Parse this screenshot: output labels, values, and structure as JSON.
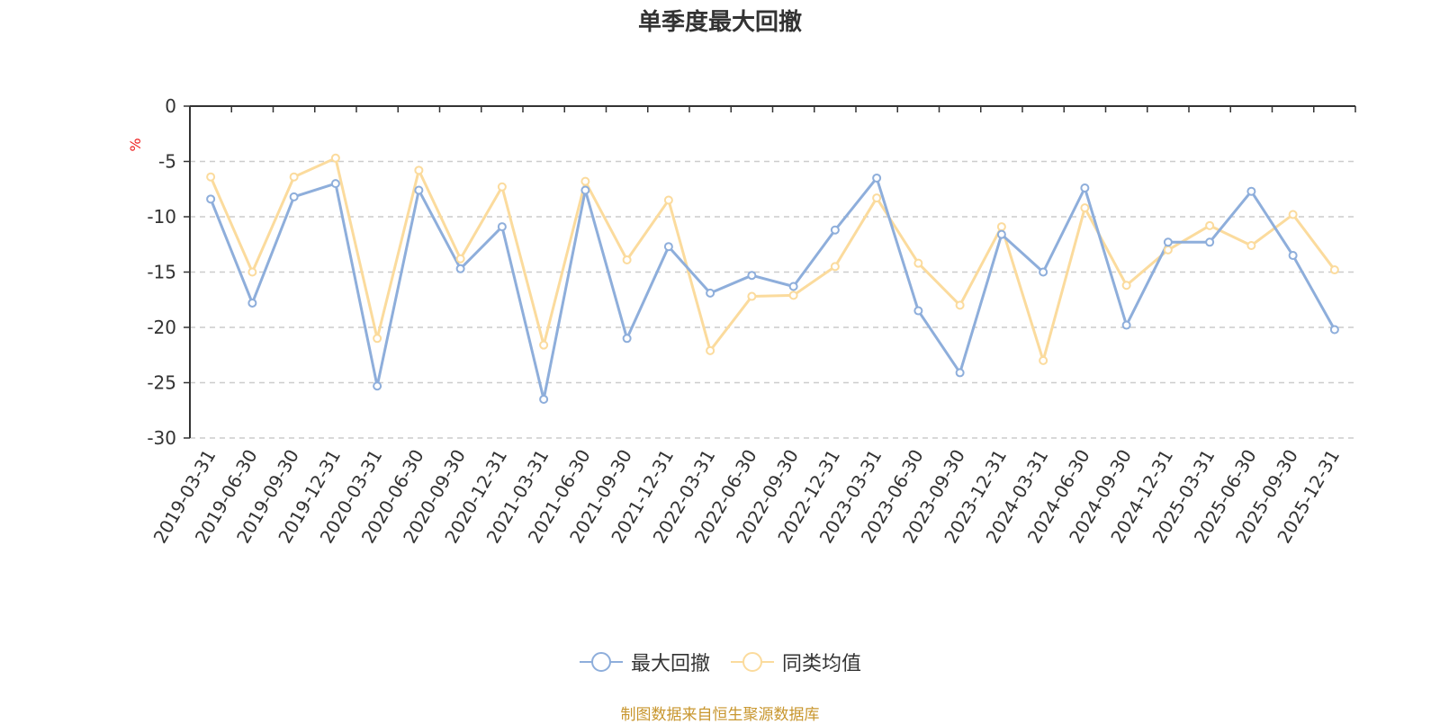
{
  "chart_data": {
    "type": "line",
    "title": "单季度最大回撤",
    "ylabel": "%",
    "xlabel": "",
    "ylim": [
      -30,
      0
    ],
    "yticks": [
      0,
      -5,
      -10,
      -15,
      -20,
      -25,
      -30
    ],
    "grid": "horizontal-dashed",
    "legend_position": "bottom-center",
    "categories": [
      "2019-03-31",
      "2019-06-30",
      "2019-09-30",
      "2019-12-31",
      "2020-03-31",
      "2020-06-30",
      "2020-09-30",
      "2020-12-31",
      "2021-03-31",
      "2021-06-30",
      "2021-09-30",
      "2021-12-31",
      "2022-03-31",
      "2022-06-30",
      "2022-09-30",
      "2022-12-31",
      "2023-03-31",
      "2023-06-30",
      "2023-09-30",
      "2023-12-31",
      "2024-03-31",
      "2024-06-30",
      "2024-09-30",
      "2024-12-31",
      "2025-03-31",
      "2025-06-30",
      "2025-09-30",
      "2025-12-31"
    ],
    "series": [
      {
        "name": "最大回撤",
        "color": "#8eaedb",
        "values": [
          -8.4,
          -17.8,
          -8.2,
          -7.0,
          -25.3,
          -7.6,
          -14.7,
          -10.9,
          -26.5,
          -7.6,
          -21.0,
          -12.7,
          -16.9,
          -15.3,
          -16.3,
          -11.2,
          -6.5,
          -18.5,
          -24.1,
          -11.6,
          -15.0,
          -7.4,
          -19.8,
          -12.3,
          -12.3,
          -7.7,
          -13.5,
          -20.2
        ]
      },
      {
        "name": "同类均值",
        "color": "#fbdb9d",
        "values": [
          -6.4,
          -15.0,
          -6.4,
          -4.7,
          -21.0,
          -5.8,
          -13.8,
          -7.3,
          -21.6,
          -6.8,
          -13.9,
          -8.5,
          -22.1,
          -17.2,
          -17.1,
          -14.5,
          -8.3,
          -14.2,
          -18.0,
          -10.9,
          -23.0,
          -9.2,
          -16.2,
          -13.0,
          -10.8,
          -12.6,
          -9.8,
          -14.8
        ]
      }
    ]
  },
  "footer": {
    "source": "制图数据来自恒生聚源数据库"
  }
}
